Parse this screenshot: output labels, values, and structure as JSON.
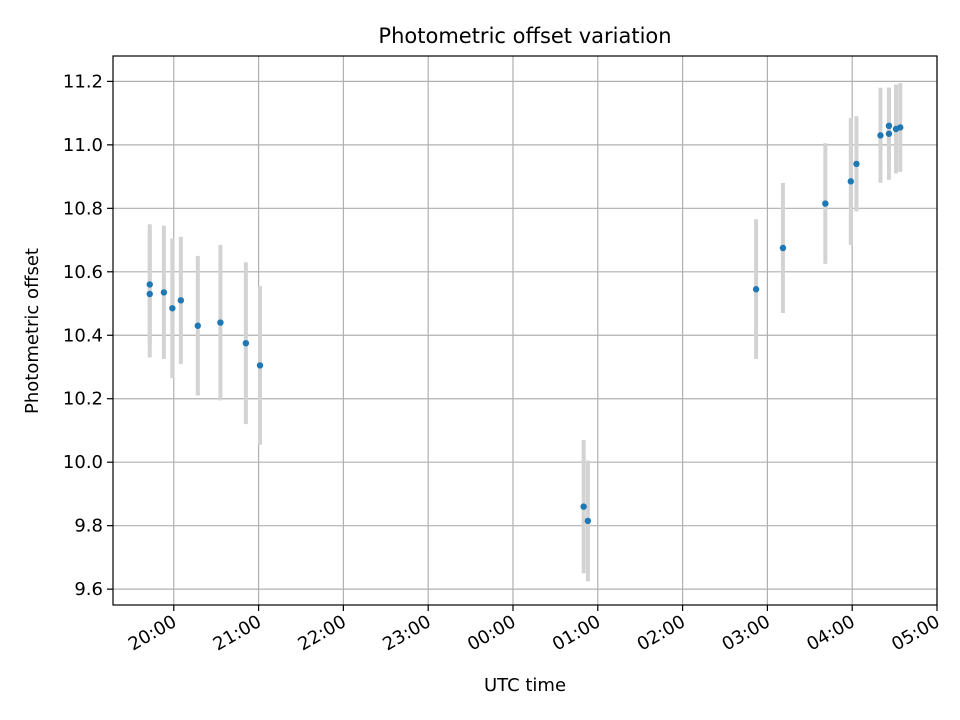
{
  "chart_data": {
    "type": "scatter",
    "title": "Photometric offset variation",
    "xlabel": "UTC time",
    "ylabel": "Photometric offset",
    "x_unit": "UTC time (HH:MM)",
    "xlim": [
      "19:17",
      "05:00"
    ],
    "ylim": [
      9.55,
      11.28
    ],
    "x_ticks": [
      "20:00",
      "21:00",
      "22:00",
      "23:00",
      "00:00",
      "01:00",
      "02:00",
      "03:00",
      "04:00",
      "05:00"
    ],
    "y_ticks": [
      9.6,
      9.8,
      10.0,
      10.2,
      10.4,
      10.6,
      10.8,
      11.0,
      11.2
    ],
    "y_tick_labels": [
      "9.6",
      "9.8",
      "10.0",
      "10.2",
      "10.4",
      "10.6",
      "10.8",
      "11.0",
      "11.2"
    ],
    "grid": true,
    "marker_color": "#1f77b4",
    "errorbar_color": "#d3d3d3",
    "points": [
      {
        "x": "19:43",
        "y": 10.53,
        "err": 0.2
      },
      {
        "x": "19:43",
        "y": 10.56,
        "err": 0.19
      },
      {
        "x": "19:53",
        "y": 10.535,
        "err": 0.21
      },
      {
        "x": "19:59",
        "y": 10.485,
        "err": 0.22
      },
      {
        "x": "20:05",
        "y": 10.51,
        "err": 0.2
      },
      {
        "x": "20:17",
        "y": 10.43,
        "err": 0.22
      },
      {
        "x": "20:33",
        "y": 10.44,
        "err": 0.245
      },
      {
        "x": "20:51",
        "y": 10.375,
        "err": 0.255
      },
      {
        "x": "21:01",
        "y": 10.305,
        "err": 0.25
      },
      {
        "x": "00:50",
        "y": 9.86,
        "err": 0.21
      },
      {
        "x": "00:53",
        "y": 9.815,
        "err": 0.19
      },
      {
        "x": "02:52",
        "y": 10.545,
        "err": 0.22
      },
      {
        "x": "03:11",
        "y": 10.675,
        "err": 0.205
      },
      {
        "x": "03:41",
        "y": 10.815,
        "err": 0.19
      },
      {
        "x": "03:59",
        "y": 10.885,
        "err": 0.2
      },
      {
        "x": "04:03",
        "y": 10.94,
        "err": 0.15
      },
      {
        "x": "04:20",
        "y": 11.03,
        "err": 0.15
      },
      {
        "x": "04:26",
        "y": 11.035,
        "err": 0.145
      },
      {
        "x": "04:26",
        "y": 11.06,
        "err": 0.12
      },
      {
        "x": "04:31",
        "y": 11.05,
        "err": 0.14
      },
      {
        "x": "04:34",
        "y": 11.055,
        "err": 0.14
      }
    ]
  }
}
